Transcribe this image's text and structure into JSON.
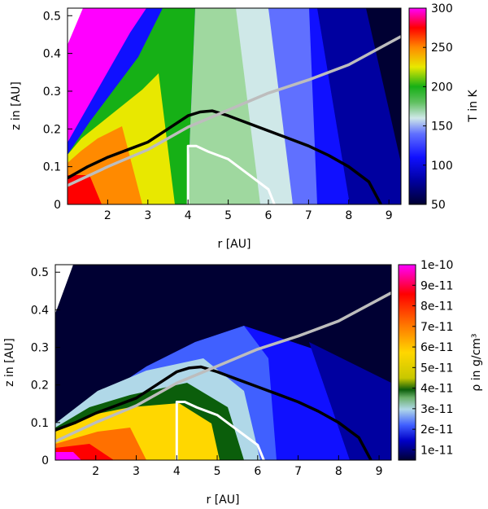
{
  "panels": [
    {
      "id": "temperature",
      "xlabel": "r [AU]",
      "ylabel": "z in [AU]",
      "colorbar_label": "T in K",
      "xticks": [
        "2",
        "3",
        "4",
        "5",
        "6",
        "7",
        "8",
        "9"
      ],
      "yticks": [
        "0",
        "0.1",
        "0.2",
        "0.3",
        "0.4",
        "0.5"
      ],
      "cbar_ticks": [
        "300",
        "250",
        "200",
        "150",
        "100",
        "50"
      ]
    },
    {
      "id": "density",
      "xlabel": "r [AU]",
      "ylabel": "z in [AU]",
      "colorbar_label": "ρ in g/cm³",
      "xticks": [
        "2",
        "3",
        "4",
        "5",
        "6",
        "7",
        "8",
        "9"
      ],
      "yticks": [
        "0",
        "0.1",
        "0.2",
        "0.3",
        "0.4",
        "0.5"
      ],
      "cbar_ticks": [
        "1e-10",
        "9e-11",
        "8e-11",
        "7e-11",
        "6e-11",
        "5e-11",
        "4e-11",
        "3e-11",
        "2e-11",
        "1e-11"
      ]
    }
  ],
  "chart_data": [
    {
      "type": "heatmap",
      "title": "",
      "xlabel": "r [AU]",
      "ylabel": "z in [AU]",
      "xlim": [
        1.0,
        9.3
      ],
      "ylim": [
        0,
        0.52
      ],
      "colorbar": {
        "label": "T in K",
        "range": [
          50,
          300
        ],
        "ticks": [
          50,
          100,
          150,
          200,
          250,
          300
        ]
      },
      "colors": {
        "high": "#ff00ff",
        "warm": "#ff0000",
        "mid": "#ffd700",
        "green": "#16b016",
        "pale": "#cfe8e8",
        "blue": "#0000ff",
        "low": "#000033"
      },
      "series": [
        {
          "color": "black",
          "x": [
            1.0,
            1.5,
            2.0,
            2.5,
            3.0,
            3.5,
            4.0,
            4.3,
            4.6,
            5.0,
            5.5,
            6.0,
            6.5,
            7.0,
            7.5,
            8.0,
            8.5,
            8.8
          ],
          "y": [
            0.07,
            0.1,
            0.125,
            0.145,
            0.165,
            0.2,
            0.235,
            0.245,
            0.248,
            0.235,
            0.215,
            0.195,
            0.175,
            0.155,
            0.13,
            0.1,
            0.06,
            0.0
          ]
        },
        {
          "color": "light gray",
          "x": [
            1.0,
            2.0,
            3.0,
            4.0,
            5.0,
            6.0,
            7.0,
            8.0,
            9.3
          ],
          "y": [
            0.05,
            0.1,
            0.145,
            0.205,
            0.25,
            0.295,
            0.33,
            0.37,
            0.445
          ]
        },
        {
          "color": "white",
          "x": [
            4.0,
            4.0,
            4.2,
            4.5,
            5.0,
            5.5,
            6.0,
            6.15
          ],
          "y": [
            0.0,
            0.155,
            0.155,
            0.14,
            0.12,
            0.08,
            0.04,
            0.0
          ]
        }
      ]
    },
    {
      "type": "heatmap",
      "title": "",
      "xlabel": "r [AU]",
      "ylabel": "z in [AU]",
      "xlim": [
        1.0,
        9.3
      ],
      "ylim": [
        0,
        0.52
      ],
      "colorbar": {
        "label": "ρ in g/cm³",
        "range": [
          5e-12,
          1e-10
        ],
        "ticks": [
          "1e-11",
          "2e-11",
          "3e-11",
          "4e-11",
          "5e-11",
          "6e-11",
          "7e-11",
          "8e-11",
          "9e-11",
          "1e-10"
        ]
      },
      "colors": {
        "high": "#ff00ff",
        "warm": "#ff0000",
        "mid": "#ffd700",
        "green": "#0b5e0b",
        "pale": "#cfe8e8",
        "blue": "#0000ff",
        "low": "#000033"
      },
      "series": [
        {
          "color": "black",
          "x": [
            1.0,
            1.5,
            2.0,
            2.5,
            3.0,
            3.5,
            4.0,
            4.3,
            4.6,
            5.0,
            5.5,
            6.0,
            6.5,
            7.0,
            7.5,
            8.0,
            8.5,
            8.8
          ],
          "y": [
            0.08,
            0.1,
            0.125,
            0.145,
            0.165,
            0.2,
            0.235,
            0.245,
            0.248,
            0.235,
            0.215,
            0.195,
            0.175,
            0.155,
            0.13,
            0.1,
            0.06,
            0.0
          ]
        },
        {
          "color": "light gray",
          "x": [
            1.0,
            2.0,
            3.0,
            4.0,
            5.0,
            6.0,
            7.0,
            8.0,
            9.3
          ],
          "y": [
            0.05,
            0.1,
            0.145,
            0.205,
            0.25,
            0.295,
            0.33,
            0.37,
            0.445
          ]
        },
        {
          "color": "white",
          "x": [
            4.0,
            4.0,
            4.2,
            4.5,
            5.0,
            5.5,
            6.0,
            6.15
          ],
          "y": [
            0.0,
            0.155,
            0.155,
            0.14,
            0.12,
            0.08,
            0.04,
            0.0
          ]
        }
      ]
    }
  ]
}
